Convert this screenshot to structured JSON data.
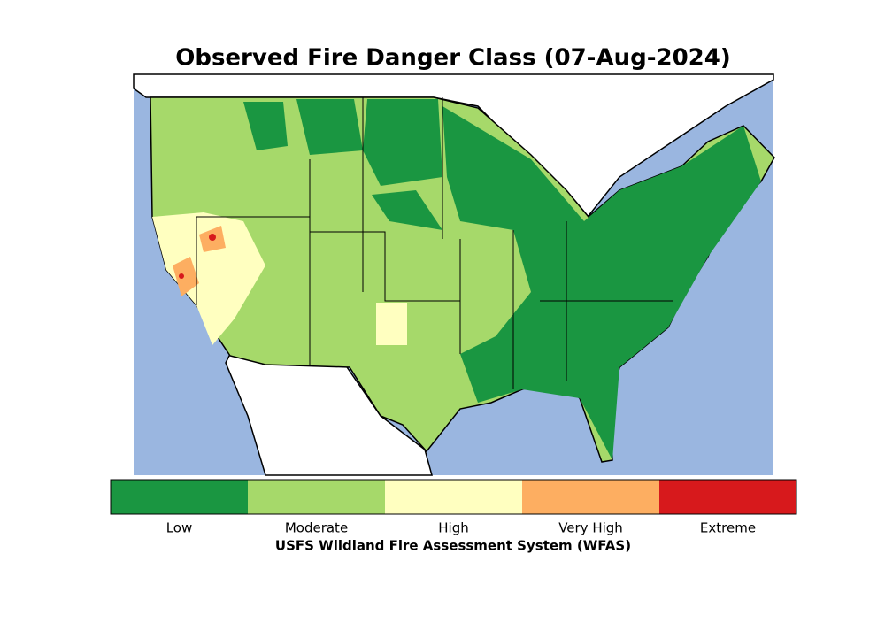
{
  "title": "Observed Fire Danger Class (07-Aug-2024)",
  "legend": {
    "classes": [
      {
        "label": "Low",
        "color": "#1a9641"
      },
      {
        "label": "Moderate",
        "color": "#a6d96a"
      },
      {
        "label": "High",
        "color": "#ffffc0"
      },
      {
        "label": "Very High",
        "color": "#fdae61"
      },
      {
        "label": "Extreme",
        "color": "#d7191c"
      }
    ],
    "caption": "USFS Wildland Fire Assessment System (WFAS)"
  }
}
